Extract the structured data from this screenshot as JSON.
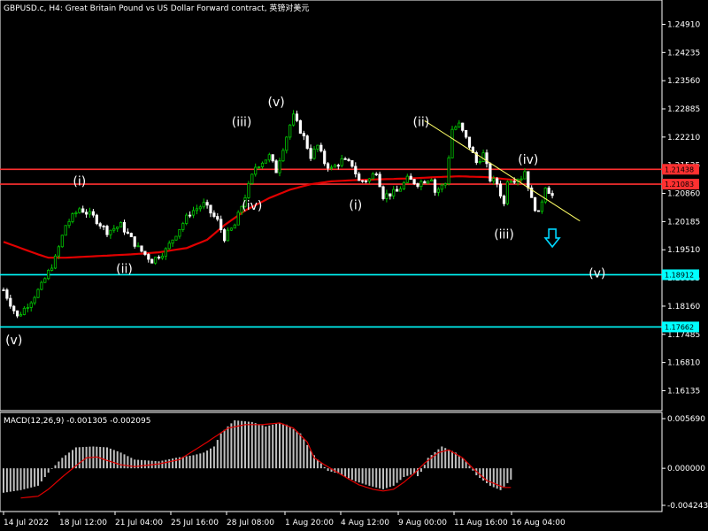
{
  "window": {
    "title": "GBPUSD.c, H4:  Great Britain Pound vs US Dollar Forward contract, 英镑对美元"
  },
  "colors": {
    "background": "#000000",
    "bull_candle": "#00c800",
    "bear_candle": "#ffffff",
    "moving_average": "#e00000",
    "resistance": "#ff3030",
    "support": "#00ffff",
    "trendline": "#ffff66",
    "macd_hist": "#c0c0c0",
    "macd_signal": "#e00000",
    "arrow": "#00d7ff"
  },
  "chart_data": [
    {
      "type": "candlestick",
      "symbol": "GBPUSD.c",
      "timeframe": "H4",
      "ylim": [
        1.157,
        1.2545
      ],
      "y_ticks": [
        "1.24910",
        "1.24235",
        "1.23560",
        "1.22885",
        "1.22210",
        "1.21535",
        "1.20860",
        "1.20185",
        "1.19510",
        "1.18835",
        "1.18160",
        "1.17485",
        "1.16810",
        "1.16135"
      ],
      "x_ticks": [
        "14 Jul 2022",
        "18 Jul 12:00",
        "21 Jul 04:00",
        "25 Jul 16:00",
        "28 Jul 08:00",
        "1 Aug 20:00",
        "4 Aug 12:00",
        "9 Aug 00:00",
        "11 Aug 16:00",
        "16 Aug 04:00"
      ],
      "bar_count": 118,
      "close_path": [
        1.1855,
        1.179,
        1.183,
        1.1865,
        1.193,
        1.201,
        1.205,
        1.203,
        1.1995,
        1.201,
        1.1955,
        1.1925,
        1.195,
        1.199,
        1.204,
        1.206,
        1.202,
        1.198,
        1.201,
        1.208,
        1.215,
        1.2175,
        1.214,
        1.217,
        1.225,
        1.227,
        1.222,
        1.2175,
        1.22,
        1.216,
        1.2145,
        1.2165,
        1.2155,
        1.2115,
        1.212,
        1.214,
        1.208,
        1.209,
        1.212,
        1.211,
        1.2125,
        1.209,
        1.211,
        1.224,
        1.225,
        1.22,
        1.216,
        1.218,
        1.212,
        1.211,
        1.206,
        1.212,
        1.2125,
        1.214,
        1.207,
        1.2035,
        1.2105,
        1.208
      ],
      "close_path_bars": [
        0,
        4,
        8,
        11,
        15,
        18,
        22,
        26,
        30,
        34,
        39,
        43,
        47,
        50,
        54,
        58,
        62,
        64,
        67,
        70,
        73,
        77,
        79,
        80,
        83,
        84,
        87,
        89,
        91,
        93,
        95,
        98,
        101,
        103,
        106,
        108,
        110,
        114,
        117,
        120,
        124,
        125,
        128,
        130,
        132,
        135,
        137,
        139,
        141,
        143,
        145,
        146,
        150,
        151,
        153,
        155,
        157,
        159
      ],
      "moving_average": {
        "values": [
          1.197,
          1.1955,
          1.194,
          1.1932,
          1.1932,
          1.1935,
          1.1937,
          1.194,
          1.1945,
          1.1955,
          1.1975,
          1.201,
          1.2045,
          1.2075,
          1.2095,
          1.2108,
          1.2115,
          1.2118,
          1.212,
          1.2122,
          1.2125,
          1.2127,
          1.2125,
          1.2118,
          1.2115
        ],
        "bars": [
          0,
          5,
          10,
          13,
          18,
          25,
          30,
          37,
          45,
          53,
          59,
          64,
          70,
          77,
          83,
          89,
          95,
          102,
          110,
          118,
          125,
          132,
          140,
          148,
          150
        ]
      },
      "levels": [
        {
          "value": 1.21438,
          "label": "1.21438",
          "kind": "resistance"
        },
        {
          "value": 1.21083,
          "label": "1.21083",
          "kind": "resistance"
        },
        {
          "value": 1.18912,
          "label": "1.18912",
          "kind": "support"
        },
        {
          "value": 1.17662,
          "label": "1.17662",
          "kind": "support"
        }
      ],
      "trendline": {
        "from": {
          "bar": 122,
          "price": 1.226
        },
        "to": {
          "bar": 167,
          "price": 1.202
        }
      },
      "wave_labels": [
        {
          "text": "(v)",
          "bar": 3,
          "price": 1.1725
        },
        {
          "text": "(i)",
          "bar": 22,
          "price": 1.2105
        },
        {
          "text": "(ii)",
          "bar": 35,
          "price": 1.1895
        },
        {
          "text": "(iii)",
          "bar": 69,
          "price": 1.2247
        },
        {
          "text": "(v)",
          "bar": 79,
          "price": 1.2295
        },
        {
          "text": "(iv)",
          "bar": 72,
          "price": 1.2047
        },
        {
          "text": "(i)",
          "bar": 102,
          "price": 1.2048
        },
        {
          "text": "(ii)",
          "bar": 121,
          "price": 1.2247
        },
        {
          "text": "(iv)",
          "bar": 152,
          "price": 1.2157
        },
        {
          "text": "(iii)",
          "bar": 145,
          "price": 1.1978
        },
        {
          "text": "(v)",
          "bar": 172,
          "price": 1.1885
        }
      ],
      "arrow": {
        "direction": "down",
        "bar": 159,
        "price": 1.1975
      }
    },
    {
      "type": "bar",
      "name": "MACD(12,26,9)",
      "header": "MACD(12,26,9) -0.001305 -0.002095",
      "ylim": [
        -0.00475,
        0.0062
      ],
      "y_ticks": [
        "0.005690",
        "0.000000",
        "-0.004243"
      ],
      "histogram": {
        "values": [
          -0.0028,
          -0.0025,
          -0.002,
          -0.0005,
          0.0012,
          0.0024,
          0.0025,
          0.0024,
          0.0018,
          0.001,
          0.0008,
          0.0012,
          0.0015,
          0.0018,
          0.0025,
          0.004,
          0.0048,
          0.0055,
          0.0053,
          0.0048,
          0.0052,
          0.005,
          0.004,
          0.002,
          0.001,
          -0.0003,
          -0.0006,
          -0.0015,
          -0.002,
          -0.0024,
          -0.002,
          -0.001,
          -0.0006,
          -0.0009,
          -0.0004,
          0.0012,
          0.0025,
          0.0018,
          0.0008,
          -0.0008,
          -0.002,
          -0.0025,
          -0.0013
        ],
        "bars": [
          0,
          5,
          10,
          13,
          17,
          21,
          26,
          30,
          34,
          38,
          45,
          50,
          55,
          58,
          61,
          63,
          65,
          67,
          72,
          76,
          80,
          82,
          86,
          89,
          91,
          94,
          97,
          102,
          106,
          110,
          113,
          116,
          119,
          120,
          121,
          123,
          127,
          131,
          134,
          137,
          141,
          144,
          147
        ]
      },
      "signal": {
        "values": [
          -0.0034,
          -0.0032,
          -0.0024,
          -0.001,
          0.0003,
          0.0012,
          0.0013,
          0.0009,
          0.0004,
          0.0002,
          0.0005,
          0.001,
          0.003,
          0.0046,
          0.005,
          0.005,
          0.0052,
          0.0046,
          0.003,
          0.0012,
          0.0004,
          -0.0003,
          -0.001,
          -0.0019,
          -0.0024,
          -0.0026,
          -0.0024,
          -0.0016,
          -0.0006,
          0.0006,
          0.0018,
          0.0021,
          0.0012,
          0.0,
          -0.0014,
          -0.0022,
          -0.0022
        ],
        "bars": [
          5,
          10,
          13,
          17,
          21,
          24,
          27,
          30,
          34,
          38,
          45,
          51,
          59,
          65,
          70,
          75,
          80,
          84,
          88,
          90,
          93,
          96,
          99,
          103,
          107,
          110,
          113,
          116,
          119,
          122,
          126,
          129,
          133,
          136,
          140,
          145,
          147
        ]
      }
    }
  ]
}
